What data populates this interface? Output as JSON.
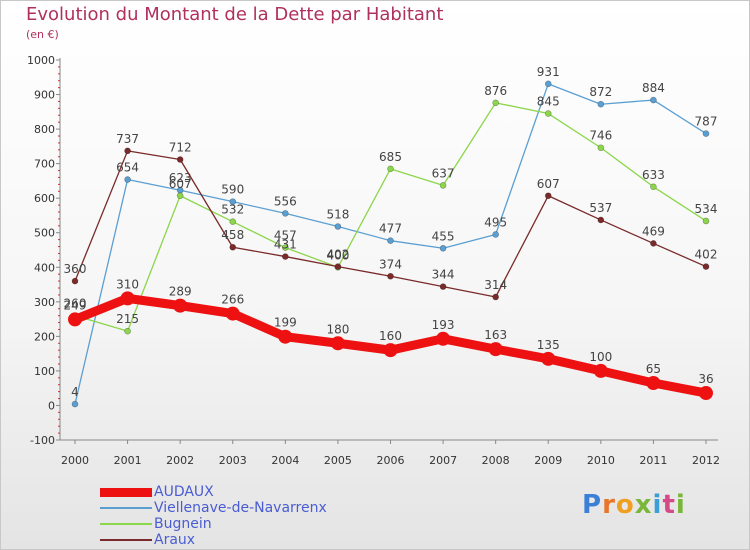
{
  "header": {
    "title": "Evolution du Montant de la Dette par Habitant",
    "unit": "(en €)"
  },
  "logo": {
    "text": "Proxiti",
    "letter_colors": [
      "#3b7fd6",
      "#e8762a",
      "#f0a020",
      "#7ab63a",
      "#3b9fd6",
      "#d64a8a",
      "#7ab63a"
    ]
  },
  "chart_data": {
    "type": "line",
    "title": "Evolution du Montant de la Dette par Habitant",
    "subtitle": "(en €)",
    "xlabel": "",
    "ylabel": "",
    "x": [
      "2000",
      "2001",
      "2002",
      "2003",
      "2004",
      "2005",
      "2006",
      "2007",
      "2008",
      "2009",
      "2010",
      "2011",
      "2012"
    ],
    "ylim": [
      -100,
      1000
    ],
    "yticks": [
      "-100",
      "0",
      "100",
      "200",
      "300",
      "400",
      "500",
      "600",
      "700",
      "800",
      "900",
      "1000"
    ],
    "grid": false,
    "legend_position": "bottom-left",
    "series": [
      {
        "name": "AUDAUX",
        "color": "#ee1111",
        "emphasis": true,
        "values": [
          249,
          310,
          289,
          266,
          199,
          180,
          160,
          193,
          163,
          135,
          100,
          65,
          36
        ],
        "labels": [
          "249",
          "310",
          "289",
          "266",
          "199",
          "180",
          "160",
          "193",
          "163",
          "135",
          "100",
          "65",
          "36"
        ]
      },
      {
        "name": "Viellenave-de-Navarrenx",
        "color": "#5b9fd2",
        "values": [
          4,
          654,
          623,
          590,
          556,
          518,
          477,
          455,
          495,
          931,
          872,
          884,
          787
        ],
        "labels": [
          "4",
          "654",
          "623",
          "590",
          "556",
          "518",
          "477",
          "455",
          "495",
          "931",
          "872",
          "884",
          "787"
        ]
      },
      {
        "name": "Bugnein",
        "color": "#8bd64a",
        "values": [
          260,
          215,
          607,
          532,
          457,
          400,
          685,
          637,
          876,
          845,
          746,
          633,
          534
        ],
        "labels": [
          "260",
          "215",
          "607",
          "532",
          "457",
          "400",
          "685",
          "637",
          "876",
          "845",
          "746",
          "633",
          "534"
        ]
      },
      {
        "name": "Araux",
        "color": "#7a2a2a",
        "values": [
          360,
          737,
          712,
          458,
          431,
          402,
          374,
          344,
          314,
          607,
          537,
          469,
          402
        ],
        "labels": [
          "360",
          "737",
          "712",
          "458",
          "431",
          "402",
          "374",
          "344",
          "314",
          "607",
          "537",
          "469",
          "402"
        ]
      }
    ]
  }
}
